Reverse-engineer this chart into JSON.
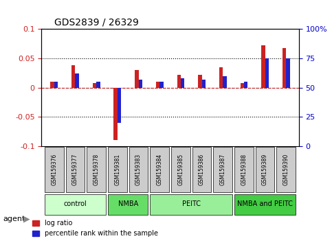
{
  "title": "GDS2839 / 26329",
  "samples": [
    "GSM159376",
    "GSM159377",
    "GSM159378",
    "GSM159381",
    "GSM159383",
    "GSM159384",
    "GSM159385",
    "GSM159386",
    "GSM159387",
    "GSM159388",
    "GSM159389",
    "GSM159390"
  ],
  "log_ratio": [
    0.01,
    0.038,
    0.008,
    -0.09,
    0.03,
    0.01,
    0.022,
    0.022,
    0.035,
    0.008,
    0.072,
    0.068
  ],
  "percentile_rank": [
    55,
    62,
    55,
    20,
    57,
    55,
    58,
    57,
    60,
    55,
    75,
    75
  ],
  "groups": [
    {
      "label": "control",
      "start": 0,
      "end": 3,
      "color": "#ccffcc"
    },
    {
      "label": "NMBA",
      "start": 3,
      "end": 5,
      "color": "#66dd66"
    },
    {
      "label": "PEITC",
      "start": 5,
      "end": 9,
      "color": "#99ee99"
    },
    {
      "label": "NMBA and PEITC",
      "start": 9,
      "end": 12,
      "color": "#44cc44"
    }
  ],
  "ylim_left": [
    -0.1,
    0.1
  ],
  "yticks_left": [
    -0.1,
    -0.05,
    0,
    0.05,
    0.1
  ],
  "ylim_right": [
    0,
    100
  ],
  "yticks_right": [
    0,
    25,
    50,
    75,
    100
  ],
  "yticklabels_right": [
    "0",
    "25",
    "50",
    "75",
    "100%"
  ],
  "bar_width": 0.35,
  "log_ratio_color": "#cc2222",
  "percentile_color": "#2222cc",
  "agent_label": "agent",
  "legend_log": "log ratio",
  "legend_pct": "percentile rank within the sample",
  "bg_color": "#ffffff",
  "plot_bg": "#ffffff",
  "grid_color": "#aaaaaa",
  "tick_label_color_left": "#cc2222",
  "tick_label_color_right": "#0000cc"
}
